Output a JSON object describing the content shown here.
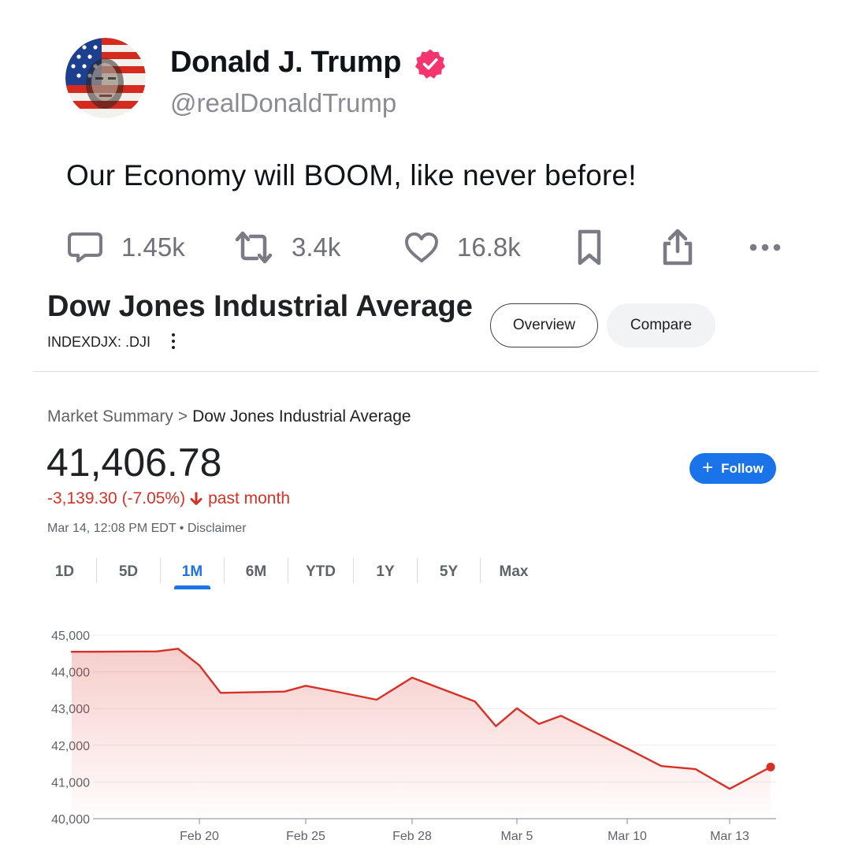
{
  "post": {
    "author_name": "Donald J. Trump",
    "handle": "@realDonaldTrump",
    "text": "Our Economy will BOOM, like never before!",
    "stats": {
      "replies": "1.45k",
      "reposts": "3.4k",
      "likes": "16.8k"
    },
    "icons": [
      "avatar-image",
      "verified-badge-icon",
      "reply-icon",
      "repost-icon",
      "like-icon",
      "bookmark-icon",
      "share-icon",
      "more-icon"
    ],
    "colors": {
      "verified": "#f4356f",
      "icon_gray": "#7b7b85"
    }
  },
  "finance": {
    "title": "Dow Jones Industrial Average",
    "ticker": "INDEXDJX: .DJI",
    "tabs": {
      "overview": "Overview",
      "compare": "Compare"
    },
    "breadcrumb": {
      "parent": "Market Summary",
      "separator": ">",
      "current": "Dow Jones Industrial Average"
    },
    "price": "41,406.78",
    "change": "-3,139.30 (-7.05%)",
    "change_period": "past month",
    "timestamp": "Mar 14, 12:08 PM EDT",
    "timestamp_sep": "•",
    "disclaimer": "Disclaimer",
    "follow_label": "Follow",
    "ranges": [
      "1D",
      "5D",
      "1M",
      "6M",
      "YTD",
      "1Y",
      "5Y",
      "Max"
    ],
    "active_range": "1M",
    "colors": {
      "accent": "#1a73e8",
      "negative": "#d93025"
    }
  },
  "chart_data": {
    "type": "area",
    "title": "",
    "xlabel": "",
    "ylabel": "",
    "ylim": [
      40000,
      45000
    ],
    "y_ticks": [
      "45,000",
      "44,000",
      "43,000",
      "42,000",
      "41,000",
      "40,000"
    ],
    "x_tick_labels": [
      "Feb 20",
      "Feb 25",
      "Feb 28",
      "Mar 5",
      "Mar 10",
      "Mar 13"
    ],
    "x_tick_dates": [
      "Feb 20",
      "Feb 25",
      "Feb 28",
      "Mar 5",
      "Mar 10",
      "Mar 13"
    ],
    "grid": true,
    "line_color": "#d93025",
    "series": [
      {
        "points": [
          {
            "x": "Feb 14",
            "y": 44546
          },
          {
            "x": "Feb 18",
            "y": 44556
          },
          {
            "x": "Feb 19",
            "y": 44628
          },
          {
            "x": "Feb 20",
            "y": 44177
          },
          {
            "x": "Feb 21",
            "y": 43428
          },
          {
            "x": "Feb 24",
            "y": 43461
          },
          {
            "x": "Feb 25",
            "y": 43621
          },
          {
            "x": "Feb 26",
            "y": 43433
          },
          {
            "x": "Feb 27",
            "y": 43240
          },
          {
            "x": "Feb 28",
            "y": 43841
          },
          {
            "x": "Mar 3",
            "y": 43191
          },
          {
            "x": "Mar 4",
            "y": 42520
          },
          {
            "x": "Mar 5",
            "y": 43006
          },
          {
            "x": "Mar 6",
            "y": 42580
          },
          {
            "x": "Mar 7",
            "y": 42802
          },
          {
            "x": "Mar 10",
            "y": 41912
          },
          {
            "x": "Mar 11",
            "y": 41433
          },
          {
            "x": "Mar 12",
            "y": 41350
          },
          {
            "x": "Mar 13",
            "y": 40813
          },
          {
            "x": "Mar 14",
            "y": 41407
          }
        ]
      }
    ]
  }
}
